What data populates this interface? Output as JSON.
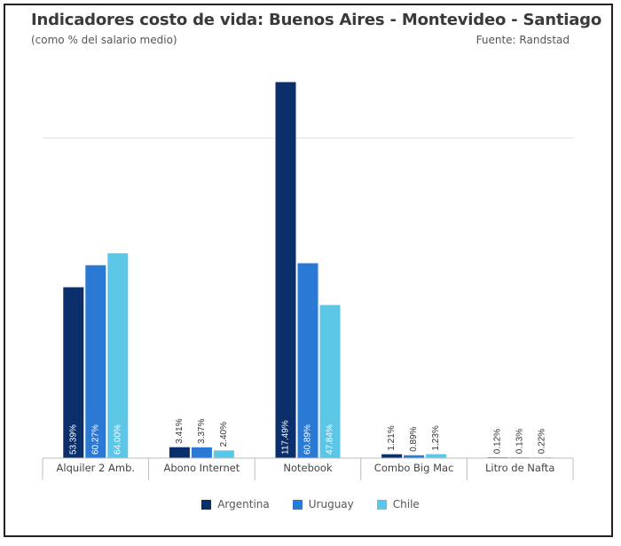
{
  "title": "Indicadores costo de vida: Buenos Aires - Montevideo - Santiago",
  "subtitle": "(como % del salario medio)",
  "source": "Fuente: Randstad",
  "colors": {
    "Argentina": "#0b2f6b",
    "Uruguay": "#2a7ad5",
    "Chile": "#5cc6e6"
  },
  "chart_data": {
    "type": "bar",
    "categories": [
      "Alquiler 2 Amb.",
      "Abono Internet",
      "Notebook",
      "Combo Big Mac",
      "Litro de Nafta"
    ],
    "series": [
      {
        "name": "Argentina",
        "values": [
          53.39,
          3.41,
          117.49,
          1.21,
          0.12
        ],
        "labels": [
          "53.39%",
          "3.41%",
          "117.49%",
          "1.21%",
          "0.12%"
        ]
      },
      {
        "name": "Uruguay",
        "values": [
          60.27,
          3.37,
          60.89,
          0.89,
          0.13
        ],
        "labels": [
          "60.27%",
          "3.37%",
          "60.89%",
          "0.89%",
          "0.13%"
        ]
      },
      {
        "name": "Chile",
        "values": [
          64.0,
          2.4,
          47.84,
          1.23,
          0.22
        ],
        "labels": [
          "64.00%",
          "2.40%",
          "47.84%",
          "1.23%",
          "0.22%"
        ]
      }
    ],
    "ylim": [
      0,
      124
    ],
    "gridlines": [
      100
    ],
    "legend_position": "bottom-center"
  }
}
